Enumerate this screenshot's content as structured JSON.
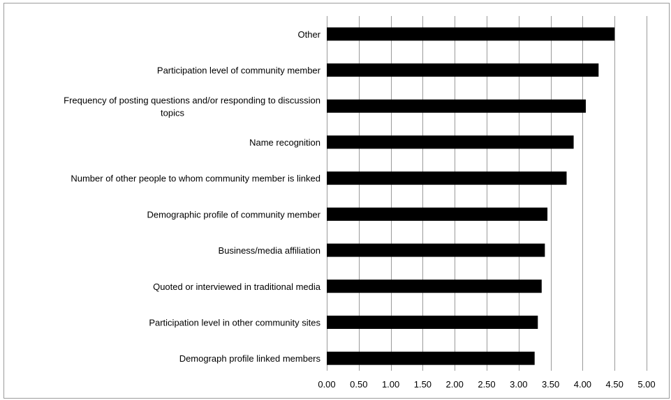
{
  "chart_data": {
    "type": "bar",
    "orientation": "horizontal",
    "title": "",
    "xlabel": "",
    "ylabel": "",
    "categories": [
      "Other",
      "Participation level of community member",
      "Frequency of posting questions and/or responding to discussion topics",
      "Name recognition",
      "Number of other people to whom community member is linked",
      "Demographic profile of community member",
      "Business/media affiliation",
      "Quoted or interviewed in traditional media",
      "Participation level in other community sites",
      "Demograph profile linked members"
    ],
    "category_label_lines": [
      [
        "Other"
      ],
      [
        "Participation level of community member"
      ],
      [
        "Frequency of posting questions and/or responding to discussion",
        "topics"
      ],
      [
        "Name recognition"
      ],
      [
        "Number of other people to whom community member is linked"
      ],
      [
        "Demographic profile of community member"
      ],
      [
        "Business/media affiliation"
      ],
      [
        "Quoted or interviewed in traditional media"
      ],
      [
        "Participation level in other community sites"
      ],
      [
        "Demograph profile linked members"
      ]
    ],
    "values": [
      4.5,
      4.25,
      4.05,
      3.86,
      3.75,
      3.45,
      3.41,
      3.36,
      3.3,
      3.25
    ],
    "xlim": [
      0,
      5
    ],
    "x_ticks": [
      "0.00",
      "0.50",
      "1.00",
      "1.50",
      "2.00",
      "2.50",
      "3.00",
      "3.50",
      "4.00",
      "4.50",
      "5.00"
    ],
    "grid": "vertical",
    "legend": "none",
    "bar_color": "#000000",
    "grid_color": "#9a9a9a"
  }
}
